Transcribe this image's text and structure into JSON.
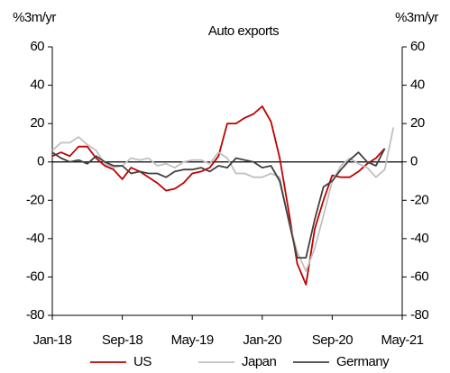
{
  "chart_data": {
    "type": "line",
    "title": "Auto exports",
    "ylabel": "%3m/yr",
    "y2label": "%3m/yr",
    "categories": [
      "Jan-18",
      null,
      null,
      null,
      null,
      null,
      null,
      null,
      "Sep-18",
      null,
      null,
      null,
      null,
      null,
      null,
      null,
      "May-19",
      null,
      null,
      null,
      null,
      null,
      null,
      null,
      "Jan-20",
      null,
      null,
      null,
      null,
      null,
      null,
      null,
      "Sep-20",
      null,
      null,
      null,
      null,
      null,
      null,
      null,
      "May-21"
    ],
    "series": [
      {
        "name": "US",
        "color": "#c00000",
        "values": [
          3,
          5,
          3,
          8,
          8,
          2,
          -2,
          -4,
          -9,
          -3,
          -5,
          -8,
          -11,
          -15,
          -14,
          -11,
          -6,
          -5,
          -3,
          3,
          20,
          20,
          23,
          25,
          29,
          21,
          2,
          -25,
          -53,
          -64,
          -35,
          -20,
          -7,
          -8,
          -8,
          -5,
          -1,
          2,
          7,
          null,
          null
        ]
      },
      {
        "name": "Japan",
        "color": "#c0c0c0",
        "values": [
          6,
          10,
          10,
          13,
          9,
          6,
          -1,
          -3,
          -2,
          2,
          1,
          2,
          -2,
          -1,
          -3,
          0,
          1,
          1,
          -1,
          5,
          2,
          -6,
          -6,
          -8,
          -8,
          -6,
          -8,
          -30,
          -47,
          -57,
          -45,
          -28,
          -10,
          -2,
          2,
          -1,
          -3,
          -8,
          -4,
          18,
          null
        ]
      },
      {
        "name": "Germany",
        "color": "#404040",
        "values": [
          5,
          2,
          0,
          1,
          -1,
          3,
          0,
          -2,
          -2,
          -6,
          -5,
          -6,
          -6,
          -8,
          -5,
          -4,
          -4,
          -3,
          -5,
          -2,
          -3,
          2,
          1,
          0,
          -3,
          -2,
          -10,
          -30,
          -50,
          -50,
          -30,
          -13,
          -10,
          -4,
          1,
          5,
          0,
          -2,
          7,
          null,
          null
        ]
      }
    ],
    "ylim": [
      -80,
      60
    ],
    "yticks": [
      -80,
      -60,
      -40,
      -20,
      0,
      20,
      40,
      60
    ],
    "y2lim": [
      -80,
      60
    ],
    "y2ticks": [
      -80,
      -60,
      -40,
      -20,
      0,
      20,
      40,
      60
    ],
    "grid": false,
    "legend": "bottom"
  }
}
